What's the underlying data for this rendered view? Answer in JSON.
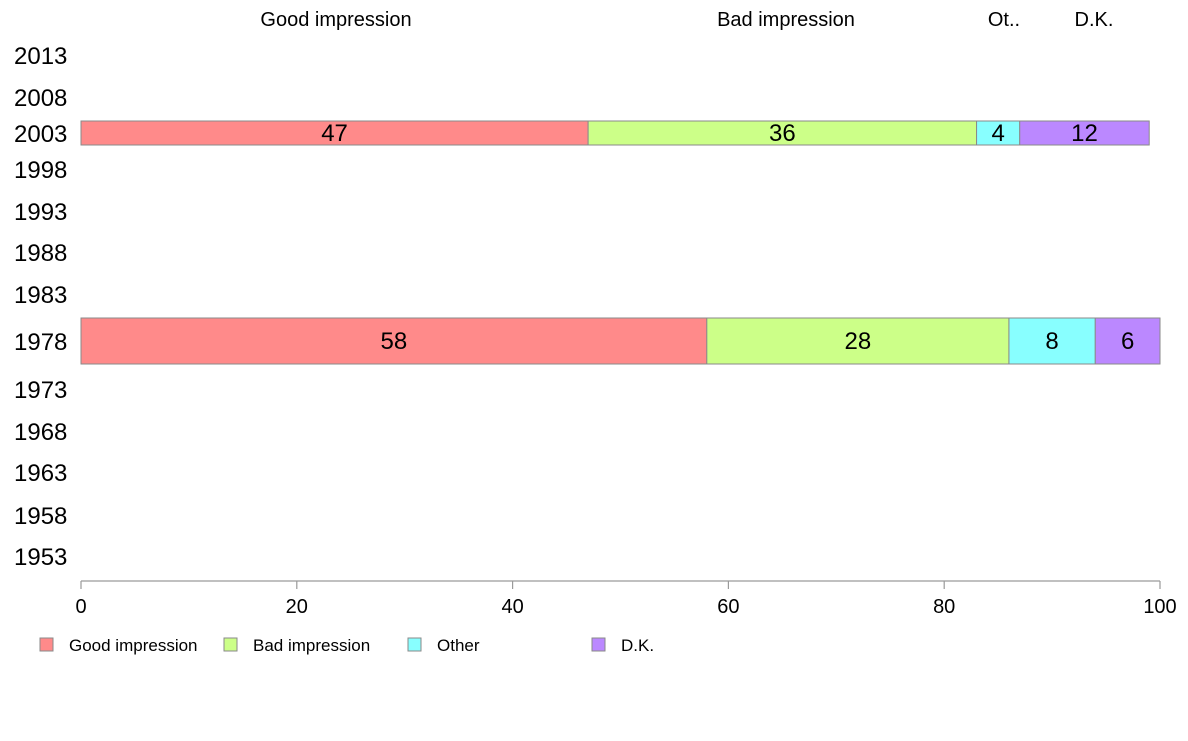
{
  "chart_data": {
    "type": "bar",
    "orientation": "horizontal",
    "stacked": true,
    "categories": [
      "2013",
      "2008",
      "2003",
      "1998",
      "1993",
      "1988",
      "1983",
      "1978",
      "1973",
      "1968",
      "1963",
      "1958",
      "1953"
    ],
    "series": [
      {
        "name": "Good impression",
        "color": "#ff8a8a",
        "values": [
          null,
          null,
          47,
          null,
          null,
          null,
          null,
          58,
          null,
          null,
          null,
          null,
          null
        ]
      },
      {
        "name": "Bad impression",
        "color": "#ccff88",
        "values": [
          null,
          null,
          36,
          null,
          null,
          null,
          null,
          28,
          null,
          null,
          null,
          null,
          null
        ]
      },
      {
        "name": "Other",
        "color": "#88ffff",
        "values": [
          null,
          null,
          4,
          null,
          null,
          null,
          null,
          8,
          null,
          null,
          null,
          null,
          null
        ]
      },
      {
        "name": "D.K.",
        "color": "#bb88ff",
        "values": [
          null,
          null,
          12,
          null,
          null,
          null,
          null,
          6,
          null,
          null,
          null,
          null,
          null
        ]
      }
    ],
    "top_labels": [
      "Good impression",
      "Bad impression",
      "Ot..",
      "D.K."
    ],
    "xlim": [
      0,
      100
    ],
    "xticks": [
      "0",
      "20",
      "40",
      "60",
      "80",
      "100"
    ],
    "grid": false,
    "legend_position": "bottom-left"
  }
}
